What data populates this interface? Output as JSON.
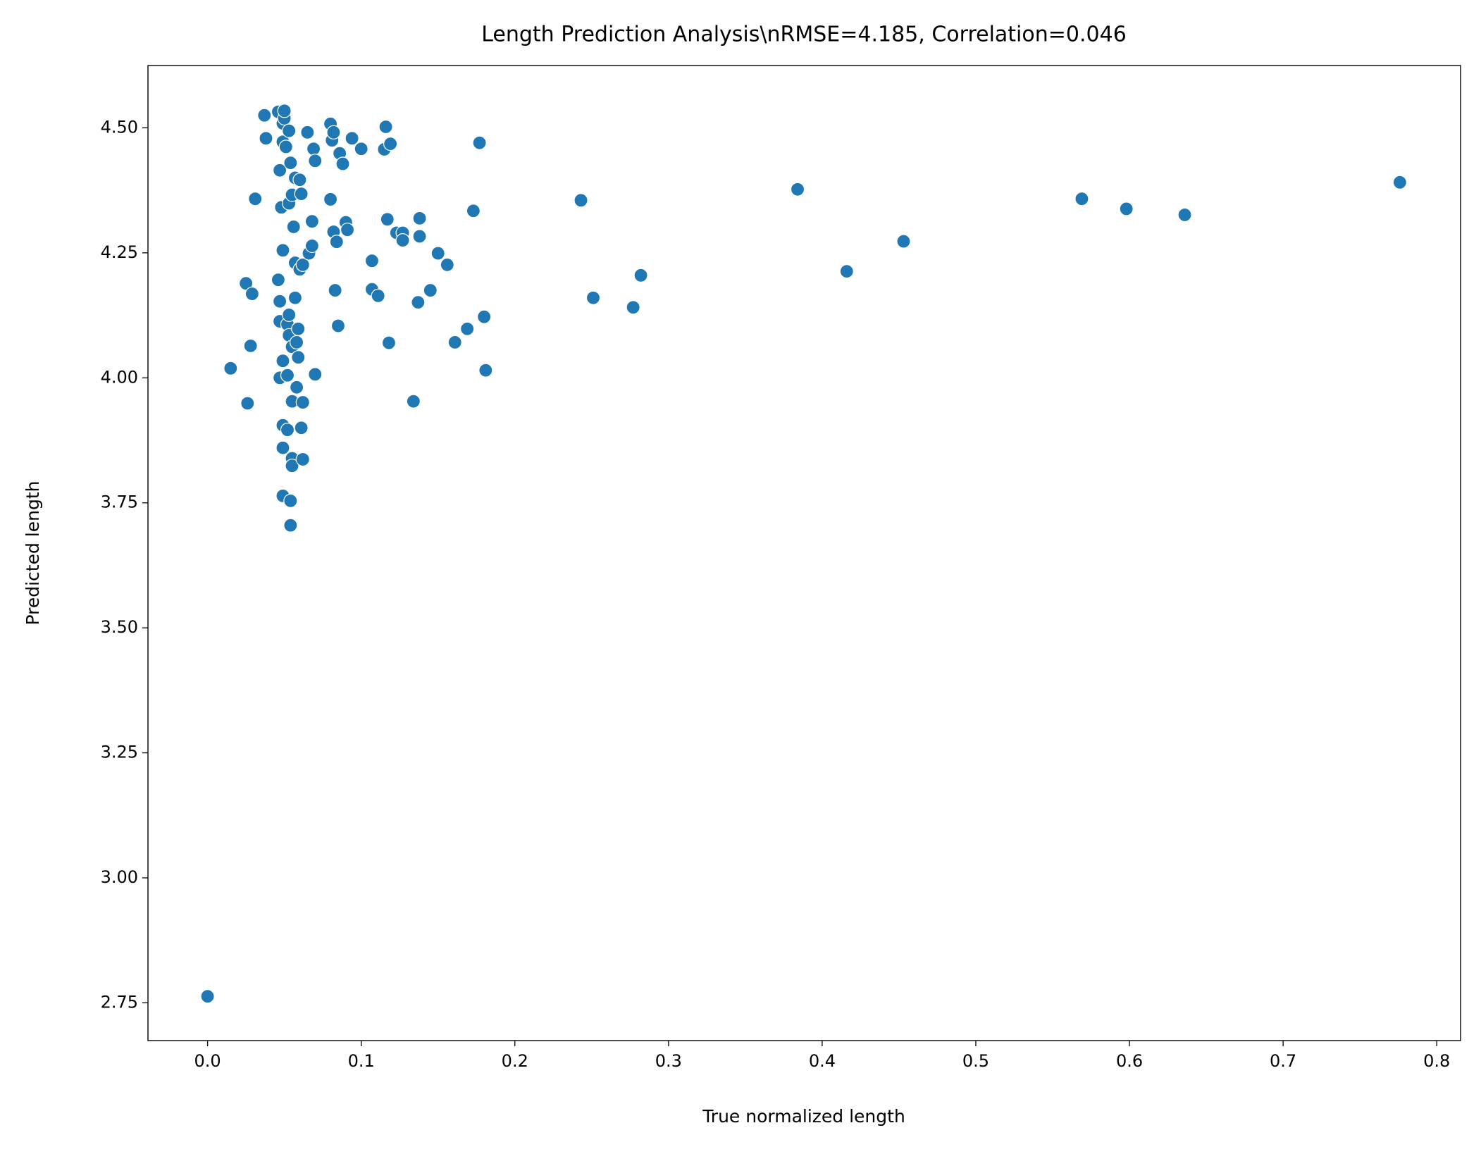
{
  "chart_data": {
    "type": "scatter",
    "title": "Length Prediction Analysis\\nRMSE=4.185, Correlation=0.046",
    "x_label": "True normalized length",
    "y_label": "Predicted length",
    "color": "#1f77b4",
    "xlim": [
      -0.0388,
      0.8155
    ],
    "ylim": [
      2.6745,
      4.6246
    ],
    "xticks": [
      {
        "value": 0,
        "label": "0.0"
      },
      0.1,
      0.2,
      0.3,
      0.4,
      0.5,
      0.6,
      0.7,
      0.8
    ],
    "yticks": [
      2.75,
      {
        "value": 3,
        "label": "3.00"
      },
      3.25,
      {
        "value": 3.5,
        "label": "3.50"
      },
      3.75,
      {
        "value": 4,
        "label": "4.00"
      },
      4.25,
      {
        "value": 4.5,
        "label": "4.50"
      }
    ],
    "x": [
      0.0,
      0.015,
      0.026,
      0.025,
      0.029,
      0.028,
      0.031,
      0.037,
      0.038,
      0.046,
      0.047,
      0.046,
      0.047,
      0.047,
      0.047,
      0.048,
      0.049,
      0.049,
      0.049,
      0.05,
      0.05,
      0.049,
      0.049,
      0.049,
      0.049,
      0.051,
      0.052,
      0.052,
      0.052,
      0.053,
      0.053,
      0.053,
      0.054,
      0.053,
      0.054,
      0.054,
      0.055,
      0.055,
      0.055,
      0.055,
      0.055,
      0.056,
      0.057,
      0.057,
      0.057,
      0.058,
      0.058,
      0.059,
      0.06,
      0.06,
      0.061,
      0.061,
      0.062,
      0.062,
      0.059,
      0.062,
      0.065,
      0.066,
      0.068,
      0.068,
      0.069,
      0.07,
      0.07,
      0.08,
      0.08,
      0.081,
      0.082,
      0.082,
      0.083,
      0.084,
      0.085,
      0.086,
      0.088,
      0.09,
      0.091,
      0.094,
      0.1,
      0.107,
      0.107,
      0.111,
      0.115,
      0.116,
      0.117,
      0.118,
      0.119,
      0.123,
      0.127,
      0.127,
      0.134,
      0.137,
      0.138,
      0.138,
      0.145,
      0.15,
      0.156,
      0.161,
      0.169,
      0.173,
      0.177,
      0.18,
      0.181,
      0.243,
      0.251,
      0.277,
      0.282,
      0.384,
      0.416,
      0.453,
      0.569,
      0.598,
      0.636,
      0.776
    ],
    "values": [
      2.763,
      4.019,
      3.949,
      4.189,
      4.168,
      4.064,
      4.358,
      4.525,
      4.479,
      4.532,
      4.415,
      4.196,
      4.153,
      4.113,
      4.0,
      4.341,
      4.255,
      4.509,
      4.472,
      4.519,
      4.534,
      4.034,
      3.905,
      3.86,
      3.764,
      4.462,
      3.896,
      4.005,
      4.107,
      4.085,
      4.126,
      4.494,
      4.43,
      4.349,
      3.705,
      3.754,
      3.839,
      3.824,
      3.953,
      4.366,
      4.062,
      4.302,
      4.23,
      4.16,
      4.4,
      3.981,
      4.071,
      4.041,
      4.217,
      4.396,
      4.368,
      3.9,
      3.837,
      3.951,
      4.098,
      4.226,
      4.491,
      4.249,
      4.313,
      4.264,
      4.458,
      4.434,
      4.007,
      4.508,
      4.357,
      4.475,
      4.491,
      4.292,
      4.175,
      4.272,
      4.104,
      4.449,
      4.428,
      4.311,
      4.296,
      4.479,
      4.458,
      4.234,
      4.177,
      4.164,
      4.457,
      4.502,
      4.317,
      4.07,
      4.468,
      4.29,
      4.29,
      4.275,
      3.953,
      4.151,
      4.319,
      4.283,
      4.175,
      4.249,
      4.226,
      4.071,
      4.098,
      4.334,
      4.47,
      4.122,
      4.015,
      4.355,
      4.16,
      4.141,
      4.205,
      4.377,
      4.213,
      4.273,
      4.358,
      4.338,
      4.326,
      4.391
    ]
  }
}
